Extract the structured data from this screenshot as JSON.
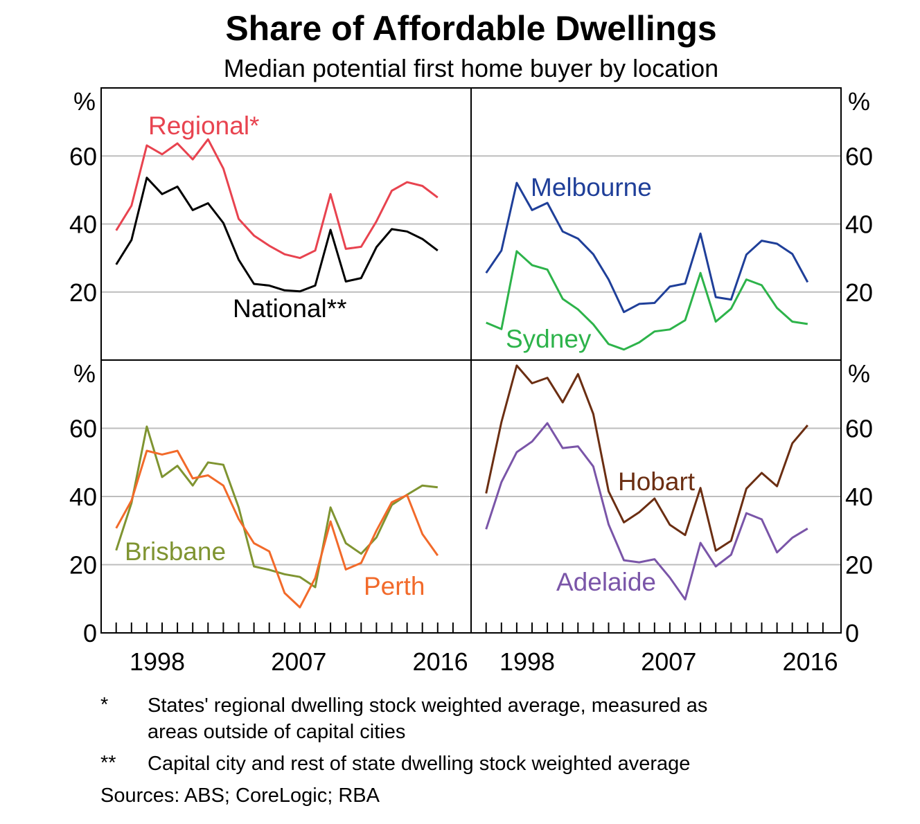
{
  "chart_data": {
    "type": "line",
    "title": "Share of Affordable Dwellings",
    "subtitle": "Median potential first home buyer by location",
    "ylabel": "%",
    "ylim": [
      0,
      80
    ],
    "yticks": [
      0,
      20,
      40,
      60
    ],
    "xticks": [
      1998,
      2007,
      2016
    ],
    "grid": true,
    "x": [
      1995,
      1996,
      1997,
      1998,
      1999,
      2000,
      2001,
      2002,
      2003,
      2004,
      2005,
      2006,
      2007,
      2008,
      2009,
      2010,
      2011,
      2012,
      2013,
      2014,
      2015,
      2016
    ],
    "panels": [
      {
        "series": [
          {
            "name": "Regional*",
            "color": "#e8434f",
            "values": [
              38.1,
              45.4,
              63.1,
              60.5,
              63.7,
              59.0,
              64.9,
              56.3,
              41.5,
              36.6,
              33.6,
              31.1,
              30.0,
              32.2,
              48.8,
              32.7,
              33.3,
              40.8,
              49.8,
              52.3,
              51.2,
              47.8
            ]
          },
          {
            "name": "National**",
            "color": "#000000",
            "values": [
              28.1,
              35.3,
              53.6,
              48.8,
              51.0,
              44.1,
              46.1,
              40.3,
              29.5,
              22.4,
              21.9,
              20.5,
              20.2,
              21.9,
              38.3,
              23.1,
              24.1,
              33.2,
              38.5,
              37.8,
              35.6,
              32.2
            ]
          }
        ]
      },
      {
        "series": [
          {
            "name": "Melbourne",
            "color": "#1f3f99",
            "values": [
              25.6,
              32.2,
              52.1,
              44.1,
              46.2,
              37.8,
              35.7,
              31.1,
              23.7,
              14.1,
              16.5,
              16.8,
              21.6,
              22.5,
              37.2,
              18.5,
              17.8,
              31.0,
              35.1,
              34.2,
              31.2,
              22.9
            ]
          },
          {
            "name": "Sydney",
            "color": "#2db34a",
            "values": [
              11.0,
              9.1,
              32.0,
              27.9,
              26.6,
              18.0,
              14.9,
              10.5,
              4.7,
              3.1,
              5.2,
              8.4,
              9.0,
              11.7,
              25.6,
              11.3,
              15.1,
              23.7,
              22.0,
              15.3,
              11.3,
              10.6
            ]
          }
        ]
      },
      {
        "series": [
          {
            "name": "Brisbane",
            "color": "#7f9431",
            "values": [
              24.2,
              38.1,
              60.5,
              45.7,
              49.0,
              43.2,
              50.0,
              49.3,
              36.8,
              19.5,
              18.5,
              17.2,
              16.4,
              13.4,
              36.8,
              26.3,
              23.2,
              28.0,
              37.5,
              40.5,
              43.2,
              42.7
            ]
          },
          {
            "name": "Perth",
            "color": "#f26a2a",
            "values": [
              30.7,
              38.8,
              53.4,
              52.3,
              53.4,
              45.3,
              46.2,
              43.2,
              33.4,
              26.3,
              23.9,
              11.7,
              7.5,
              16.1,
              32.7,
              18.6,
              20.5,
              30.0,
              38.3,
              40.4,
              29.0,
              22.7
            ]
          }
        ]
      },
      {
        "series": [
          {
            "name": "Hobart",
            "color": "#6b2e12",
            "values": [
              40.9,
              61.8,
              78.4,
              73.2,
              74.8,
              67.6,
              75.9,
              64.2,
              41.5,
              32.4,
              35.4,
              39.4,
              31.7,
              28.7,
              42.5,
              24.1,
              27.0,
              42.3,
              46.9,
              43.0,
              55.6,
              60.9
            ]
          },
          {
            "name": "Adelaide",
            "color": "#7a55a8",
            "values": [
              30.4,
              44.2,
              53.0,
              56.1,
              61.5,
              54.2,
              54.7,
              48.8,
              31.8,
              21.3,
              20.7,
              21.6,
              16.2,
              9.8,
              26.4,
              19.5,
              22.9,
              35.1,
              33.3,
              23.6,
              27.9,
              30.6
            ]
          }
        ]
      }
    ],
    "footnotes": [
      {
        "mark": "*",
        "text1": "States' regional dwelling stock weighted average, measured as",
        "text2": "areas outside of capital cities"
      },
      {
        "mark": "**",
        "text1": "Capital city and rest of state dwelling stock weighted average"
      }
    ],
    "sources": "Sources: ABS; CoreLogic; RBA"
  }
}
